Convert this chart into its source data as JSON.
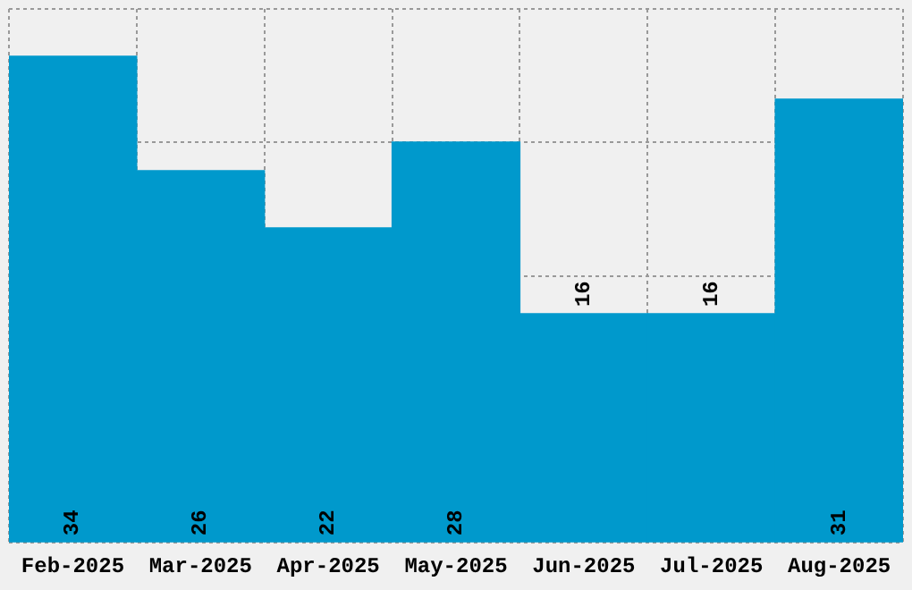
{
  "chart_data": {
    "type": "bar",
    "categories": [
      "Feb-2025",
      "Mar-2025",
      "Apr-2025",
      "May-2025",
      "Jun-2025",
      "Jul-2025",
      "Aug-2025"
    ],
    "values": [
      34,
      26,
      22,
      28,
      16,
      16,
      31
    ],
    "color": "#0099cc",
    "ylim": [
      0,
      37.3
    ],
    "grid": true,
    "data_labels": true,
    "tick_labels": "x",
    "legend": false
  }
}
